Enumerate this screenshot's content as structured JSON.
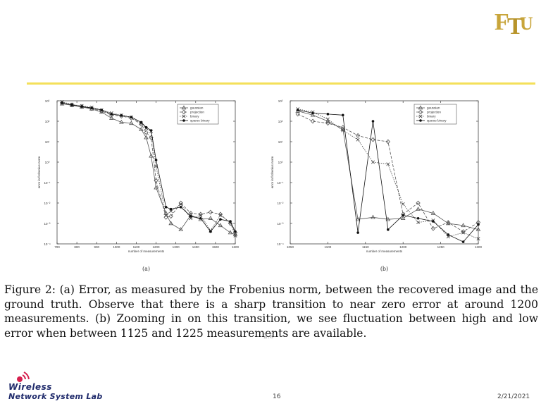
{
  "slide": {
    "caption": "Figure 2: (a) Error, as measured by the Frobenius norm, between the recovered image and the ground truth. Observe that there is a sharp transition to near zero error at around 1200 measurements. (b) Zooming in on this transition, we see fluctuation between high and low error when between 1125 and 1225 measurements are available.",
    "caption_cutoff": "2.6",
    "page_number": "16",
    "date": "2/21/2021",
    "footer_logo": {
      "line1": "Wireless",
      "line2": "Network System Lab"
    },
    "header_logo": "FTU",
    "accent_color": "#f4e05a"
  },
  "chart_data": [
    {
      "type": "line",
      "panel_label": "(a)",
      "xlabel": "number of measurements",
      "ylabel": "error in frobenius norm",
      "xlim": [
        700,
        1600
      ],
      "ylim_log10": [
        -4,
        3
      ],
      "x_ticks": [
        "700",
        "800",
        "900",
        "1000",
        "1100",
        "1200",
        "1300",
        "1400",
        "1500",
        "1600"
      ],
      "y_ticks": [
        "10⁻⁴",
        "10⁻³",
        "10⁻²",
        "10⁻¹",
        "10⁰",
        "10¹",
        "10²",
        "10³"
      ],
      "x": [
        725,
        775,
        825,
        875,
        925,
        975,
        1025,
        1075,
        1125,
        1150,
        1175,
        1200,
        1250,
        1275,
        1325,
        1375,
        1425,
        1475,
        1525,
        1575,
        1600
      ],
      "series": [
        {
          "name": "gaussian",
          "marker": "triangle",
          "log10_values": [
            2.85,
            2.78,
            2.7,
            2.6,
            2.45,
            2.15,
            1.95,
            1.9,
            1.6,
            1.2,
            0.3,
            -1.25,
            -2.5,
            -3.0,
            -3.3,
            -2.6,
            -2.8,
            -2.75,
            -3.1,
            -3.45,
            -3.55
          ]
        },
        {
          "name": "projection",
          "marker": "diamond",
          "log10_values": [
            2.9,
            2.8,
            2.72,
            2.62,
            2.5,
            2.3,
            2.25,
            2.15,
            1.85,
            1.45,
            1.2,
            -0.9,
            -2.7,
            -2.65,
            -2.0,
            -2.5,
            -2.55,
            -2.45,
            -2.55,
            -3.0,
            -3.45
          ]
        },
        {
          "name": "binary",
          "marker": "x",
          "log10_values": [
            2.95,
            2.82,
            2.75,
            2.68,
            2.55,
            2.4,
            2.3,
            2.2,
            1.9,
            1.65,
            1.5,
            -0.2,
            -2.6,
            -2.4,
            -2.05,
            -2.75,
            -2.6,
            -3.35,
            -2.6,
            -2.95,
            -3.6
          ]
        },
        {
          "name": "sparse binary",
          "marker": "dot",
          "log10_values": [
            2.9,
            2.8,
            2.72,
            2.65,
            2.55,
            2.35,
            2.28,
            2.2,
            1.95,
            1.7,
            1.55,
            0.1,
            -2.2,
            -2.3,
            -2.2,
            -2.65,
            -2.75,
            -3.4,
            -2.8,
            -2.9,
            -3.4
          ]
        }
      ]
    },
    {
      "type": "line",
      "panel_label": "(b)",
      "xlabel": "number of measurements",
      "ylabel": "error in frobenius norm",
      "xlim": [
        1050,
        1300
      ],
      "ylim_log10": [
        -4,
        3
      ],
      "x_ticks": [
        "1050",
        "1100",
        "1150",
        "1200",
        "1250",
        "1300"
      ],
      "y_ticks": [
        "10⁻⁴",
        "10⁻³",
        "10⁻²",
        "10⁻¹",
        "10⁰",
        "10¹",
        "10²",
        "10³"
      ],
      "x": [
        1060,
        1080,
        1100,
        1120,
        1140,
        1160,
        1180,
        1200,
        1220,
        1240,
        1260,
        1280,
        1300
      ],
      "series": [
        {
          "name": "gaussian",
          "marker": "triangle",
          "log10_values": [
            2.5,
            2.3,
            2.0,
            1.6,
            -2.8,
            -2.7,
            -2.8,
            -2.75,
            -2.3,
            -2.5,
            -3.0,
            -3.1,
            -3.3
          ]
        },
        {
          "name": "projection",
          "marker": "diamond",
          "log10_values": [
            2.35,
            2.0,
            1.9,
            1.7,
            1.3,
            1.1,
            1.0,
            -2.55,
            -2.0,
            -3.25,
            -2.95,
            -3.4,
            -2.95
          ]
        },
        {
          "name": "binary",
          "marker": "x",
          "log10_values": [
            2.6,
            2.45,
            2.1,
            1.55,
            1.1,
            0.0,
            -0.1,
            -2.05,
            -2.95,
            -2.85,
            -3.65,
            -3.45,
            -3.75
          ]
        },
        {
          "name": "sparse binary",
          "marker": "dot",
          "log10_values": [
            2.55,
            2.4,
            2.35,
            2.3,
            -3.45,
            2.0,
            -3.3,
            -2.6,
            -2.75,
            -2.9,
            -3.55,
            -3.9,
            -3.05
          ]
        }
      ]
    }
  ]
}
